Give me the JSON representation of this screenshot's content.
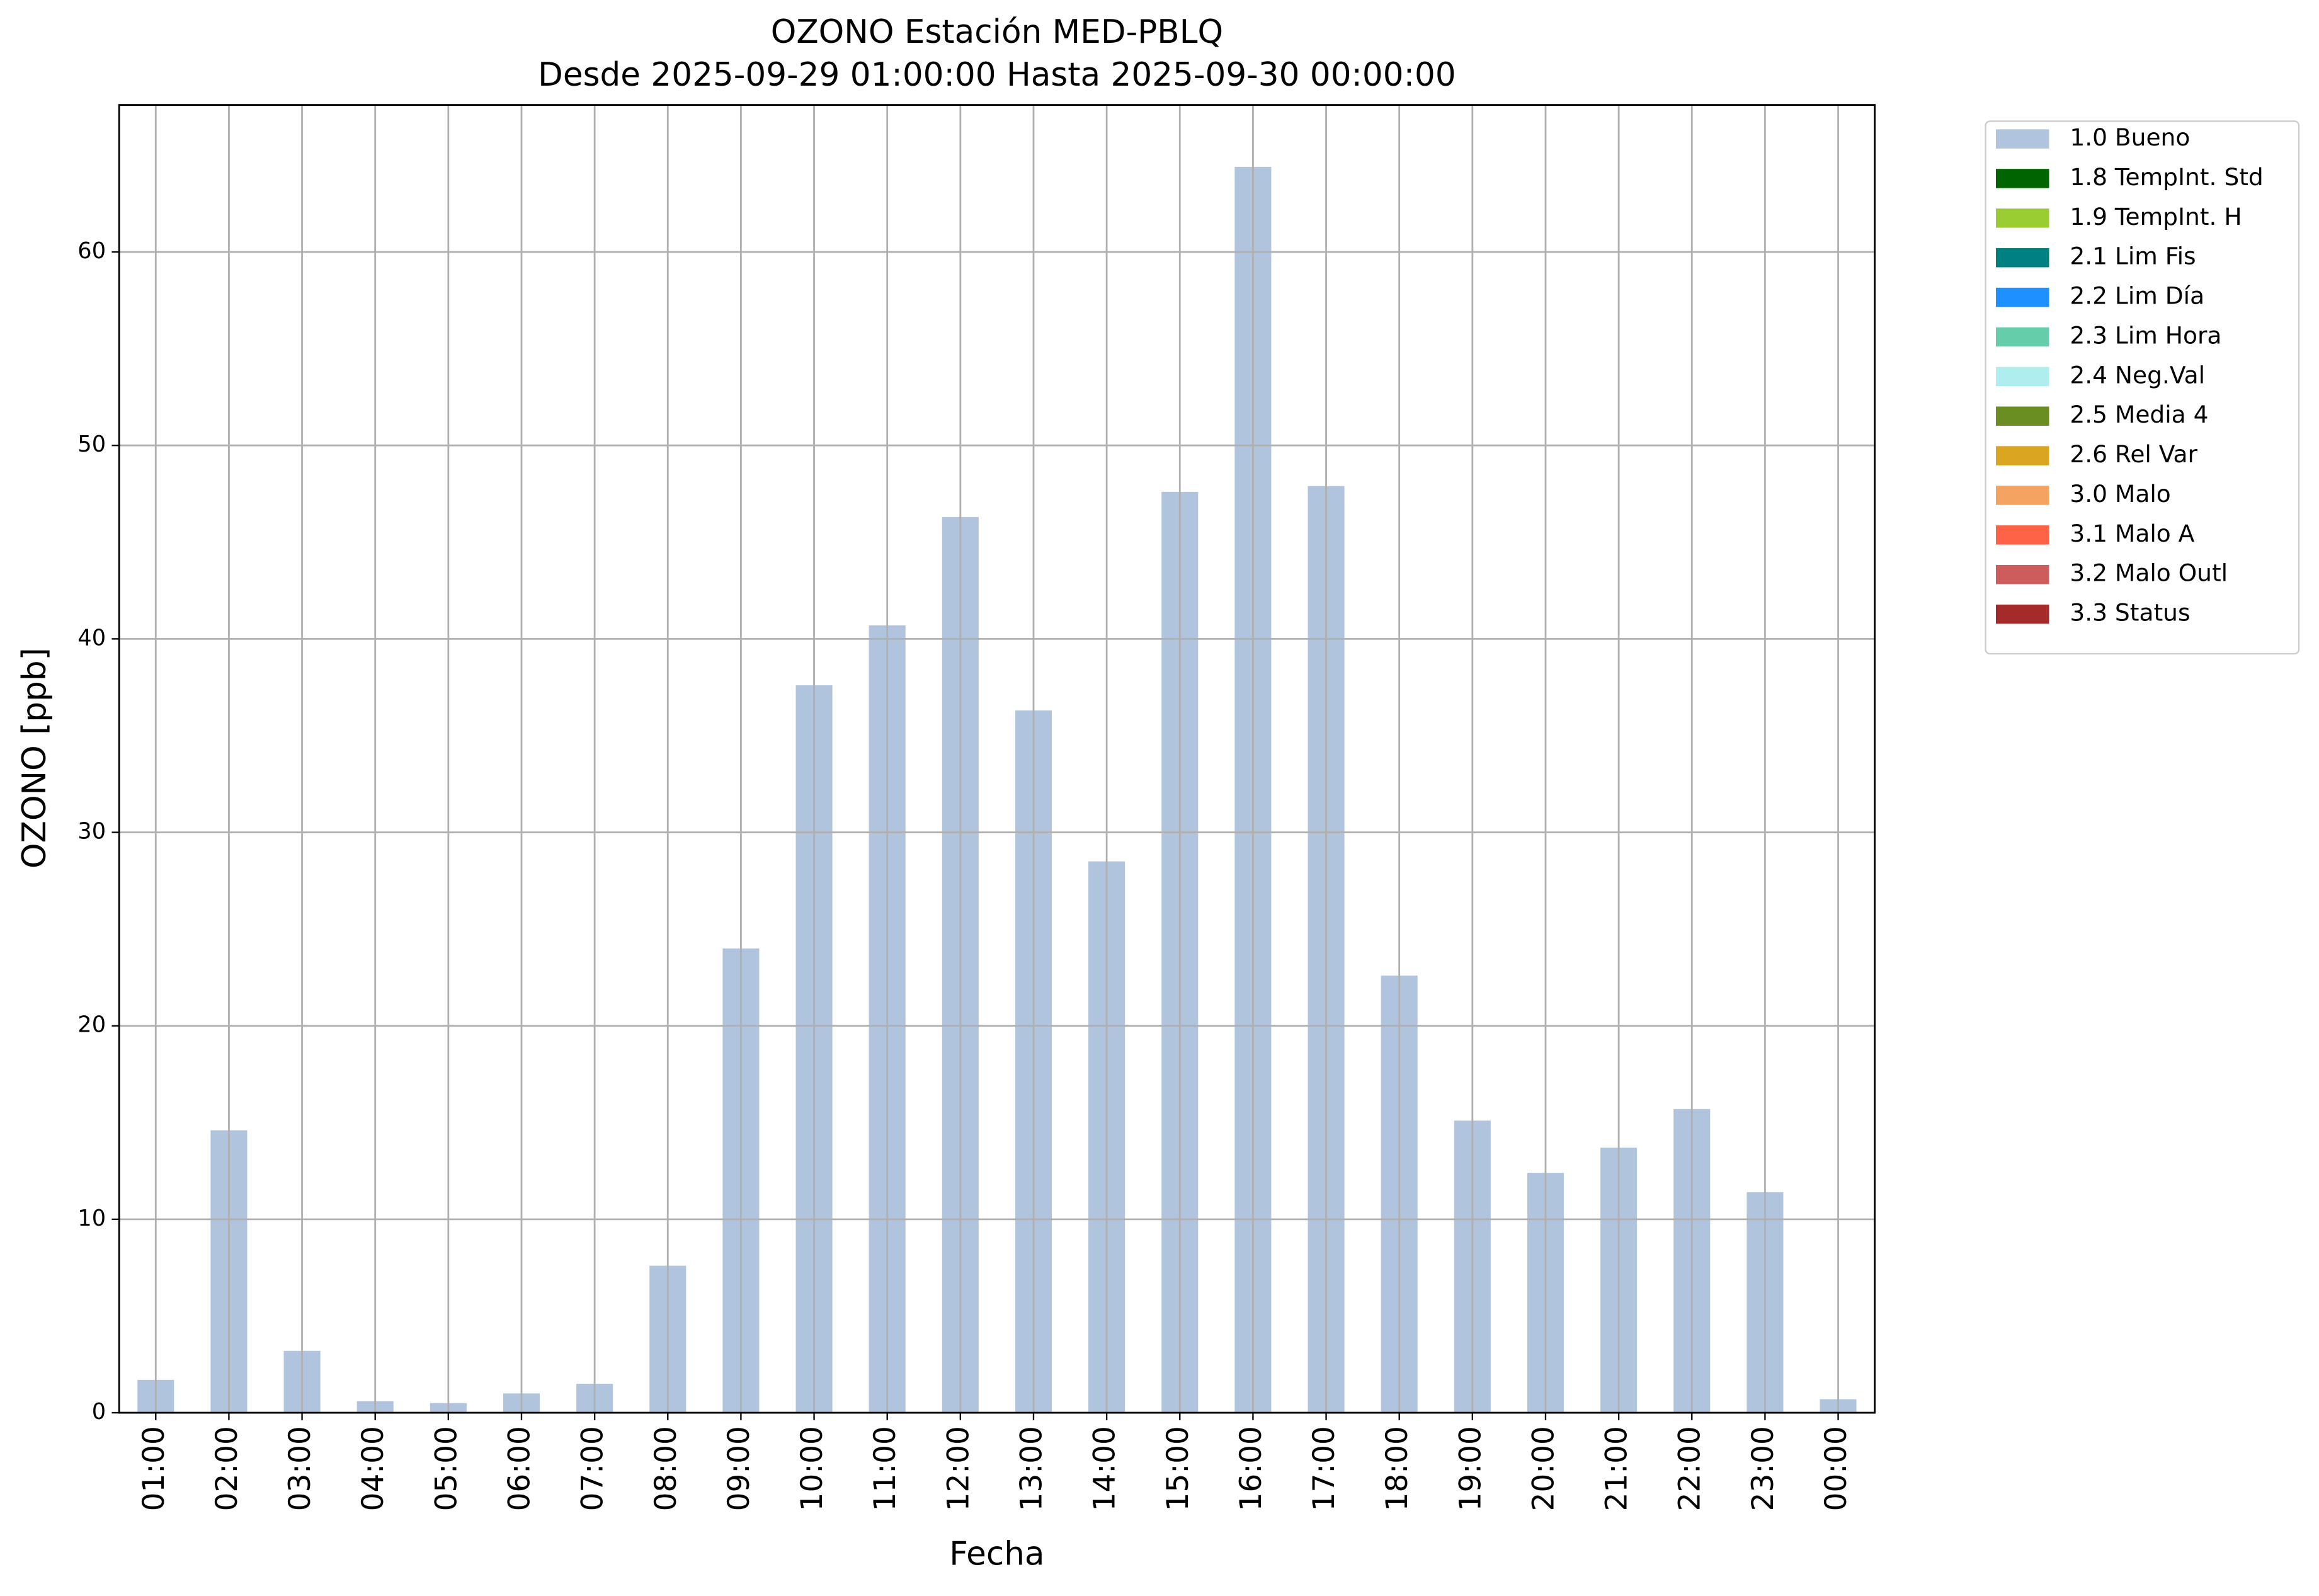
{
  "chart_data": {
    "type": "bar",
    "stacked": true,
    "title": "OZONO Estación MED-PBLQ",
    "subtitle": "Desde 2025-09-29 01:00:00 Hasta 2025-09-30 00:00:00",
    "x_label": "Fecha",
    "y_label": "OZONO [ppb]",
    "categories": [
      "01:00",
      "02:00",
      "03:00",
      "04:00",
      "05:00",
      "06:00",
      "07:00",
      "08:00",
      "09:00",
      "10:00",
      "11:00",
      "12:00",
      "13:00",
      "14:00",
      "15:00",
      "16:00",
      "17:00",
      "18:00",
      "19:00",
      "20:00",
      "21:00",
      "22:00",
      "23:00",
      "00:00"
    ],
    "series": [
      {
        "name": "1.0 Bueno",
        "color": "#b0c4de",
        "values": [
          1.7,
          14.6,
          3.2,
          0.6,
          0.5,
          1.0,
          1.5,
          7.6,
          24.0,
          37.6,
          40.7,
          46.3,
          36.3,
          28.5,
          47.6,
          64.4,
          47.9,
          22.6,
          15.1,
          12.4,
          13.7,
          15.7,
          11.4,
          0.7
        ]
      },
      {
        "name": "1.8 TempInt. Std",
        "color": "#006400",
        "values": [
          0,
          0,
          0,
          0,
          0,
          0,
          0,
          0,
          0,
          0,
          0,
          0,
          0,
          0,
          0,
          0,
          0,
          0,
          0,
          0,
          0,
          0,
          0,
          0
        ]
      },
      {
        "name": "1.9 TempInt. H",
        "color": "#9acd32",
        "values": [
          0,
          0,
          0,
          0,
          0,
          0,
          0,
          0,
          0,
          0,
          0,
          0,
          0,
          0,
          0,
          0,
          0,
          0,
          0,
          0,
          0,
          0,
          0,
          0
        ]
      },
      {
        "name": "2.1 Lim Fis",
        "color": "#008080",
        "values": [
          0,
          0,
          0,
          0,
          0,
          0,
          0,
          0,
          0,
          0,
          0,
          0,
          0,
          0,
          0,
          0,
          0,
          0,
          0,
          0,
          0,
          0,
          0,
          0
        ]
      },
      {
        "name": "2.2 Lim Día",
        "color": "#1e90ff",
        "values": [
          0,
          0,
          0,
          0,
          0,
          0,
          0,
          0,
          0,
          0,
          0,
          0,
          0,
          0,
          0,
          0,
          0,
          0,
          0,
          0,
          0,
          0,
          0,
          0
        ]
      },
      {
        "name": "2.3 Lim Hora",
        "color": "#66cdaa",
        "values": [
          0,
          0,
          0,
          0,
          0,
          0,
          0,
          0,
          0,
          0,
          0,
          0,
          0,
          0,
          0,
          0,
          0,
          0,
          0,
          0,
          0,
          0,
          0,
          0
        ]
      },
      {
        "name": "2.4 Neg.Val",
        "color": "#afeeee",
        "values": [
          0,
          0,
          0,
          0,
          0,
          0,
          0,
          0,
          0,
          0,
          0,
          0,
          0,
          0,
          0,
          0,
          0,
          0,
          0,
          0,
          0,
          0,
          0,
          0
        ]
      },
      {
        "name": "2.5 Media 4",
        "color": "#6b8e23",
        "values": [
          0,
          0,
          0,
          0,
          0,
          0,
          0,
          0,
          0,
          0,
          0,
          0,
          0,
          0,
          0,
          0,
          0,
          0,
          0,
          0,
          0,
          0,
          0,
          0
        ]
      },
      {
        "name": "2.6 Rel Var",
        "color": "#daa520",
        "values": [
          0,
          0,
          0,
          0,
          0,
          0,
          0,
          0,
          0,
          0,
          0,
          0,
          0,
          0,
          0,
          0,
          0,
          0,
          0,
          0,
          0,
          0,
          0,
          0
        ]
      },
      {
        "name": "3.0 Malo",
        "color": "#f4a460",
        "values": [
          0,
          0,
          0,
          0,
          0,
          0,
          0,
          0,
          0,
          0,
          0,
          0,
          0,
          0,
          0,
          0,
          0,
          0,
          0,
          0,
          0,
          0,
          0,
          0
        ]
      },
      {
        "name": "3.1 Malo A",
        "color": "#ff6347",
        "values": [
          0,
          0,
          0,
          0,
          0,
          0,
          0,
          0,
          0,
          0,
          0,
          0,
          0,
          0,
          0,
          0,
          0,
          0,
          0,
          0,
          0,
          0,
          0,
          0
        ]
      },
      {
        "name": "3.2 Malo Outl",
        "color": "#cd5c5c",
        "values": [
          0,
          0,
          0,
          0,
          0,
          0,
          0,
          0,
          0,
          0,
          0,
          0,
          0,
          0,
          0,
          0,
          0,
          0,
          0,
          0,
          0,
          0,
          0,
          0
        ]
      },
      {
        "name": "3.3 Status",
        "color": "#a52a2a",
        "values": [
          0,
          0,
          0,
          0,
          0,
          0,
          0,
          0,
          0,
          0,
          0,
          0,
          0,
          0,
          0,
          0,
          0,
          0,
          0,
          0,
          0,
          0,
          0,
          0
        ]
      }
    ],
    "ylim": [
      0,
      67.6
    ],
    "yticks": [
      0,
      10,
      20,
      30,
      40,
      50,
      60
    ],
    "grid": true,
    "legend": "outside right"
  }
}
